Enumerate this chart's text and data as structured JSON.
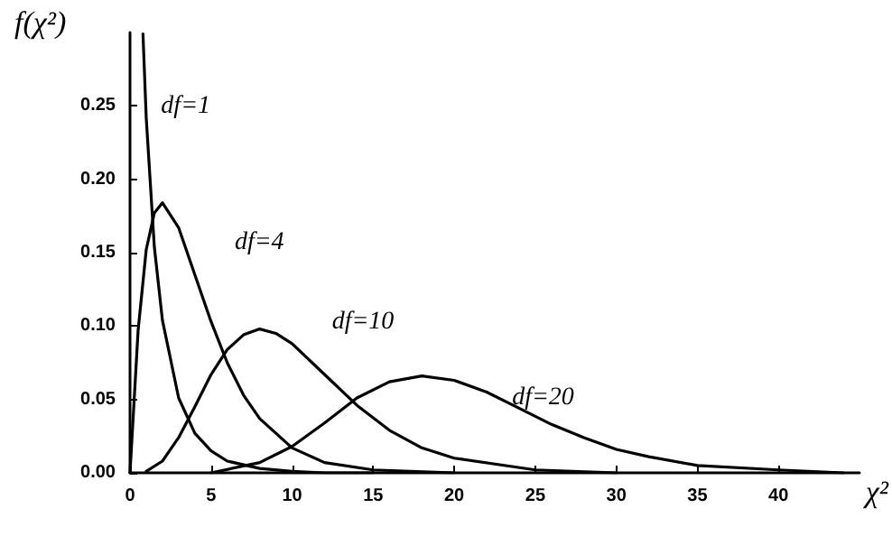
{
  "chart_data": {
    "type": "line",
    "xlabel": "χ²",
    "ylabel": "f(χ²)",
    "xlim": [
      0,
      45
    ],
    "ylim": [
      0,
      0.3
    ],
    "xticks": [
      0,
      5,
      10,
      15,
      20,
      25,
      30,
      35,
      40
    ],
    "yticks": [
      {
        "value": 0,
        "label": "0.00"
      },
      {
        "value": 0.05,
        "label": "0.05"
      },
      {
        "value": 0.1,
        "label": "0.10"
      },
      {
        "value": 0.15,
        "label": "0.15"
      },
      {
        "value": 0.2,
        "label": "0.20"
      },
      {
        "value": 0.25,
        "label": "0.25"
      }
    ],
    "grid": false,
    "marker": "none",
    "line_style": "solid",
    "series": [
      {
        "name": "df=1",
        "color": "#000000",
        "x": [
          0.8,
          1,
          1.5,
          2,
          3,
          4,
          5,
          6,
          8,
          10,
          12,
          15
        ],
        "values": [
          0.299,
          0.242,
          0.154,
          0.104,
          0.051,
          0.027,
          0.015,
          0.008,
          0.003,
          0.001,
          0,
          0
        ]
      },
      {
        "name": "df=4",
        "color": "#000000",
        "x": [
          0,
          0.5,
          1,
          1.5,
          2,
          3,
          4,
          5,
          6,
          7,
          8,
          10,
          12,
          15,
          20
        ],
        "values": [
          0,
          0.097,
          0.152,
          0.177,
          0.184,
          0.167,
          0.135,
          0.103,
          0.075,
          0.053,
          0.037,
          0.017,
          0.007,
          0.002,
          0
        ]
      },
      {
        "name": "df=10",
        "color": "#000000",
        "x": [
          1,
          2,
          3,
          4,
          5,
          6,
          7,
          8,
          9,
          10,
          12,
          14,
          16,
          18,
          20,
          25,
          30
        ],
        "values": [
          0.001,
          0.008,
          0.024,
          0.045,
          0.067,
          0.084,
          0.094,
          0.098,
          0.095,
          0.088,
          0.067,
          0.046,
          0.029,
          0.017,
          0.01,
          0.002,
          0
        ]
      },
      {
        "name": "df=20",
        "color": "#000000",
        "x": [
          5,
          8,
          10,
          12,
          14,
          16,
          18,
          20,
          22,
          24,
          26,
          28,
          30,
          32,
          35,
          40,
          44
        ],
        "values": [
          0,
          0.007,
          0.018,
          0.034,
          0.051,
          0.062,
          0.066,
          0.063,
          0.055,
          0.044,
          0.033,
          0.024,
          0.016,
          0.011,
          0.005,
          0.002,
          0
        ]
      }
    ]
  }
}
